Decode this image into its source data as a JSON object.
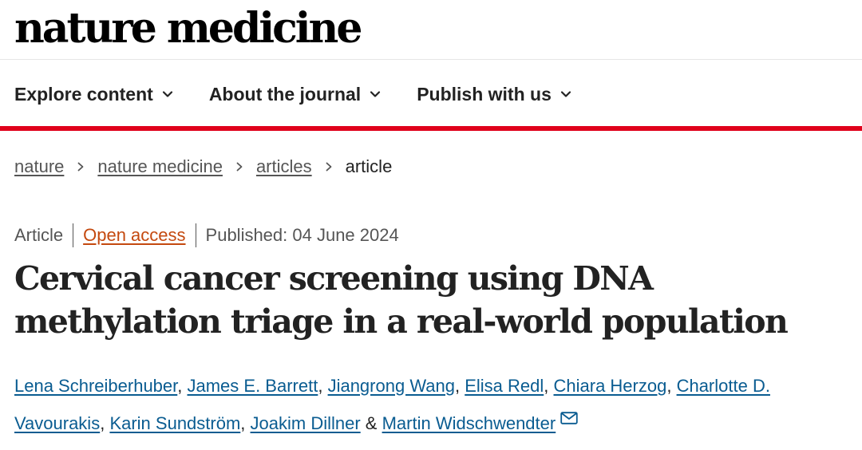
{
  "header": {
    "logo_text": "nature medicine"
  },
  "nav": {
    "items": [
      {
        "label": "Explore content"
      },
      {
        "label": "About the journal"
      },
      {
        "label": "Publish with us"
      }
    ]
  },
  "breadcrumb": {
    "items": [
      "nature",
      "nature medicine",
      "articles"
    ],
    "current": "article"
  },
  "article": {
    "type": "Article",
    "access": "Open access",
    "published": "Published: 04 June 2024",
    "title": "Cervical cancer screening using DNA methylation triage in a real-world population",
    "authors": [
      "Lena Schreiberhuber",
      "James E. Barrett",
      "Jiangrong Wang",
      "Elisa Redl",
      "Chiara Herzog",
      "Charlotte D. Vavourakis",
      "Karin Sundström",
      "Joakim Dillner",
      "Martin Widschwendter"
    ],
    "author_separator": ", ",
    "author_last_separator": " & "
  },
  "colors": {
    "accent_red": "#e0001b",
    "link_blue": "#0a5c91",
    "open_access_orange": "#c4490f"
  },
  "icons": {
    "nav_chevron": "chevron-down-icon",
    "breadcrumb_separator": "chevron-right-icon",
    "corresponding_author": "mail-icon"
  }
}
